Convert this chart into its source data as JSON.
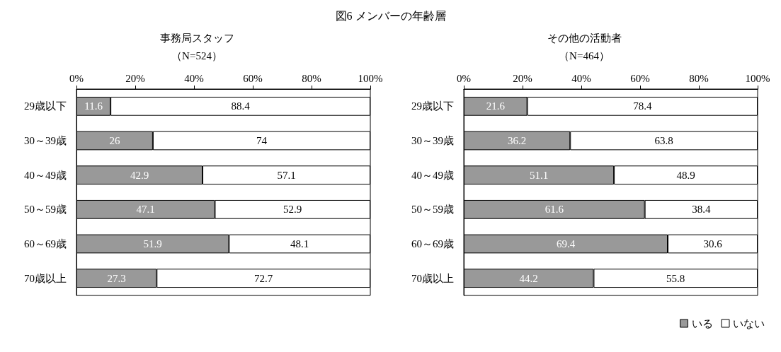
{
  "chart_data": [
    {
      "type": "bar",
      "orientation": "horizontal",
      "stacked": true,
      "title": "図6 メンバーの年齢層",
      "subtitle": "事務局スタッフ",
      "annotations": [
        "（N=524）"
      ],
      "categories": [
        "29歳以下",
        "30～39歳",
        "40～49歳",
        "50～59歳",
        "60～69歳",
        "70歳以上"
      ],
      "series": [
        {
          "color": "#999999",
          "values": [
            11.6,
            26,
            42.9,
            47.1,
            51.9,
            27.3
          ]
        },
        {
          "color": "#ffffff",
          "values": [
            88.4,
            74,
            57.1,
            52.9,
            48.1,
            72.7
          ]
        }
      ],
      "xlim": [
        0,
        100
      ],
      "xticks": [
        {
          "value": 0,
          "label": "0%"
        },
        {
          "value": 20,
          "label": "20%"
        },
        {
          "value": 40,
          "label": "40%"
        },
        {
          "value": 60,
          "label": "60%"
        },
        {
          "value": 80,
          "label": "80%"
        },
        {
          "value": 100,
          "label": "100%"
        }
      ],
      "data_labels": true,
      "grid": false,
      "legend": false
    },
    {
      "type": "bar",
      "orientation": "horizontal",
      "stacked": true,
      "subtitle": "その他の活動者",
      "annotations": [
        "（N=464）"
      ],
      "categories": [
        "29歳以下",
        "30～39歳",
        "40～49歳",
        "50～59歳",
        "60～69歳",
        "70歳以上"
      ],
      "series": [
        {
          "name": "いる",
          "color": "#999999",
          "values": [
            21.6,
            36.2,
            51.1,
            61.6,
            69.4,
            44.2
          ]
        },
        {
          "name": "いない",
          "color": "#ffffff",
          "values": [
            78.4,
            63.8,
            48.9,
            38.4,
            30.6,
            55.8
          ]
        }
      ],
      "xlim": [
        0,
        100
      ],
      "xticks": [
        {
          "value": 0,
          "label": "0%"
        },
        {
          "value": 20,
          "label": "20%"
        },
        {
          "value": 40,
          "label": "40%"
        },
        {
          "value": 60,
          "label": "60%"
        },
        {
          "value": 80,
          "label": "80%"
        },
        {
          "value": 100,
          "label": "100%"
        }
      ],
      "data_labels": true,
      "grid": false,
      "legend": "bottom right"
    }
  ]
}
